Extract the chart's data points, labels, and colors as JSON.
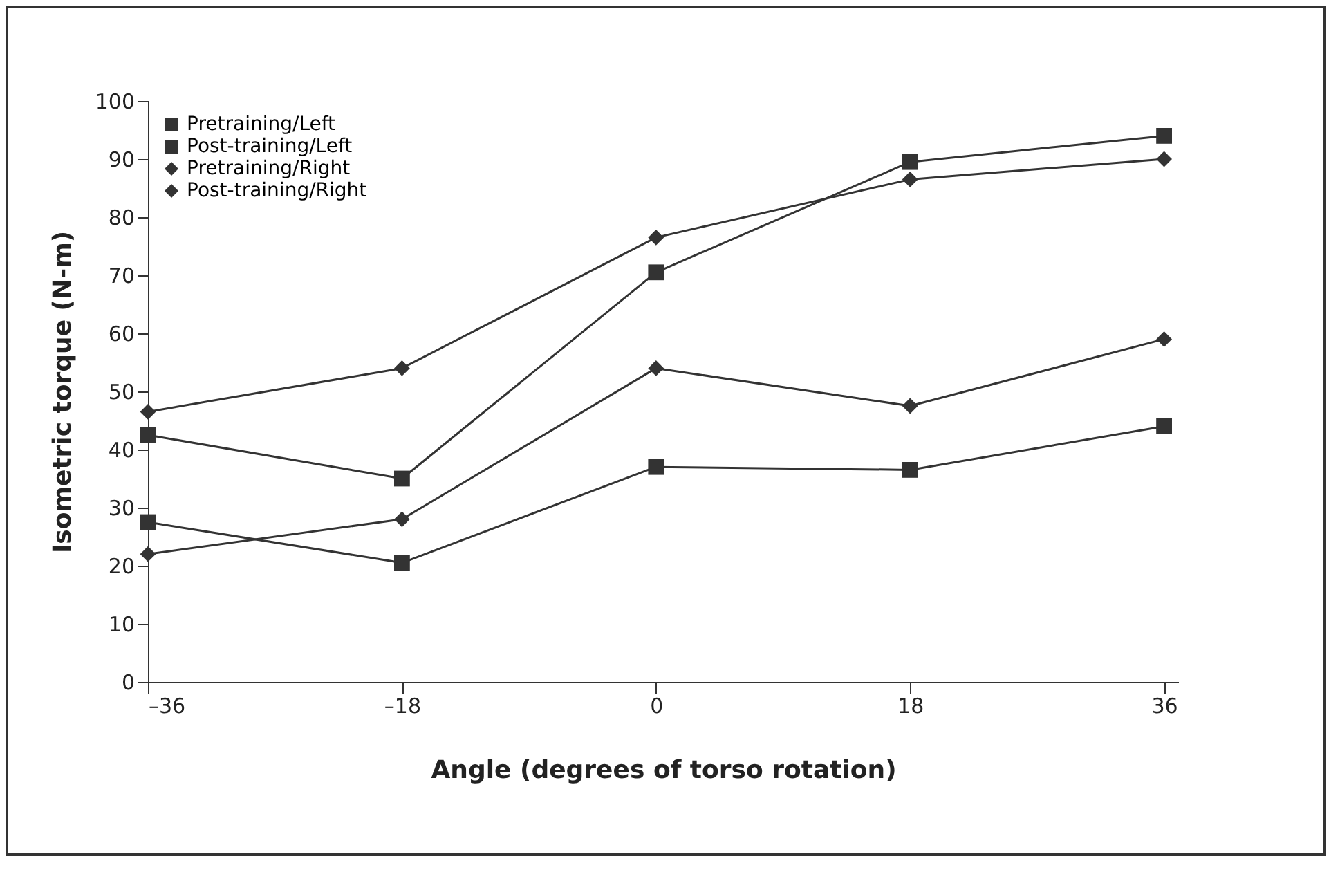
{
  "chart_data": {
    "type": "line",
    "xlabel": "Angle (degrees of torso rotation)",
    "ylabel": "Isometric torque (N-m)",
    "x": [
      -36,
      -18,
      0,
      18,
      36
    ],
    "series": [
      {
        "name": "Pretraining/Left",
        "color": "#333333",
        "marker": "square",
        "values": [
          27.5,
          20.5,
          37,
          36.5,
          44
        ]
      },
      {
        "name": "Post-training/Left",
        "color": "#333333",
        "marker": "square",
        "values": [
          42.5,
          35,
          70.5,
          89.5,
          94
        ]
      },
      {
        "name": "Pretraining/Right",
        "color": "#333333",
        "marker": "diamond",
        "values": [
          22,
          28,
          54,
          47.5,
          59
        ]
      },
      {
        "name": "Post-training/Right",
        "color": "#333333",
        "marker": "diamond",
        "values": [
          46.5,
          54,
          76.5,
          86.5,
          90
        ]
      }
    ],
    "xlim": [
      -36,
      37
    ],
    "xticks": [
      {
        "value": -36,
        "label": "–36"
      },
      {
        "value": -18,
        "label": "–18"
      },
      0,
      18,
      36
    ],
    "ylim": [
      0,
      100
    ],
    "yticks": [
      0,
      10,
      20,
      30,
      40,
      50,
      60,
      70,
      80,
      90,
      100
    ],
    "grid": false,
    "legend": "top left",
    "line_style": "solid"
  }
}
